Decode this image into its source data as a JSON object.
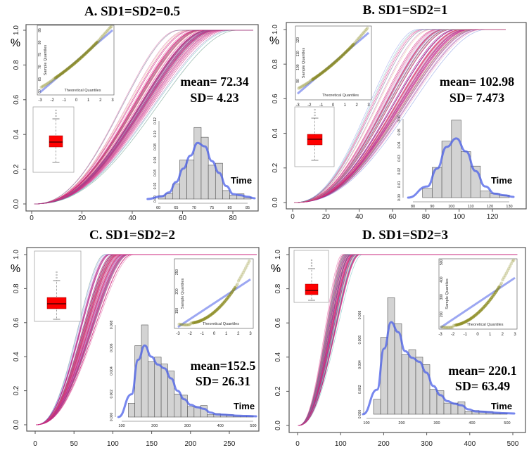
{
  "chart_data": [
    {
      "type": "line",
      "title": "A. SD1=SD2=0.5",
      "ylabel": "%",
      "xlim": [
        0,
        88
      ],
      "ylim": [
        0,
        1
      ],
      "xticks": [
        0,
        20,
        40,
        60,
        80
      ],
      "yticks": [
        "0.0",
        "0.2",
        "0.4",
        "0.6",
        "0.8",
        "1.0"
      ],
      "stats": {
        "mean": "mean= 72.34",
        "sd": "SD= 4.23"
      },
      "histogram": {
        "xlabel": "Time",
        "bin_start": 60,
        "bin_width": 2,
        "values": [
          0.005,
          0.008,
          0.023,
          0.06,
          0.06,
          0.11,
          0.095,
          0.052,
          0.055,
          0.013,
          0.006,
          0.008,
          0.003
        ],
        "xticks": [
          60,
          65,
          70,
          75,
          80,
          85
        ],
        "yticks": [
          "0.00",
          "0.02",
          "0.04",
          "0.06",
          "0.08",
          "0.10",
          "0.12"
        ]
      },
      "qqplot": {
        "xlabel": "Theoretical Quantiles",
        "ylabel": "Sample Quantiles",
        "xticks": [
          -3,
          -2,
          -1,
          0,
          1,
          2,
          3
        ],
        "yticks": [
          60,
          65,
          70,
          75,
          80,
          85
        ]
      }
    },
    {
      "type": "line",
      "title": "B. SD1=SD2=1",
      "ylabel": "%",
      "xlim": [
        0,
        130
      ],
      "ylim": [
        0,
        1
      ],
      "xticks": [
        0,
        20,
        40,
        60,
        80,
        100,
        120
      ],
      "yticks": [
        "0.0",
        "0.2",
        "0.4",
        "0.6",
        "0.8",
        "1.0"
      ],
      "stats": {
        "mean": "mean= 102.98",
        "sd": "SD= 7.473"
      },
      "histogram": {
        "xlabel": "Time",
        "bin_start": 85,
        "bin_width": 5,
        "values": [
          0.007,
          0.023,
          0.043,
          0.059,
          0.035,
          0.024,
          0.005,
          0.003,
          0.002
        ],
        "xticks": [
          80,
          90,
          100,
          110,
          120,
          130
        ],
        "yticks": [
          "0.00",
          "0.01",
          "0.02",
          "0.03",
          "0.04",
          "0.05",
          "0.06"
        ]
      },
      "qqplot": {
        "xlabel": "Theoretical Quantiles",
        "ylabel": "Sample Quantiles",
        "xticks": [
          -3,
          -2,
          -1,
          0,
          1,
          2,
          3
        ],
        "yticks": [
          90,
          100,
          110,
          120
        ]
      }
    },
    {
      "type": "line",
      "title": "C. SD1=SD2=2",
      "ylabel": "%",
      "xlim": [
        0,
        285
      ],
      "ylim": [
        0,
        1
      ],
      "xticks": [
        0,
        50,
        100,
        150,
        200,
        250
      ],
      "yticks": [
        "0.0",
        "0.2",
        "0.4",
        "0.6",
        "0.8",
        "1.0"
      ],
      "stats": {
        "mean": "mean=152.5",
        "sd": "SD= 26.31"
      },
      "histogram": {
        "xlabel": "Time",
        "bin_start": 120,
        "bin_width": 20,
        "values": [
          0.0012,
          0.0062,
          0.008,
          0.0048,
          0.0052,
          0.0046,
          0.004,
          0.002,
          0.0019,
          0.0009,
          0.0009,
          0.001,
          0.0002,
          0.0003,
          0.0002,
          0.0002,
          0.0001,
          0.0001,
          0.0001
        ],
        "xticks": [
          100,
          200,
          300,
          400,
          500
        ],
        "yticks": [
          "0.000",
          "0.002",
          "0.004",
          "0.006",
          "0.008"
        ]
      },
      "qqplot": {
        "xlabel": "Theoretical Quantiles",
        "ylabel": "Sample Quantiles",
        "xticks": [
          -3,
          -2,
          -1,
          0,
          1,
          2,
          3
        ],
        "yticks": [
          150,
          200,
          250
        ]
      }
    },
    {
      "type": "line",
      "title": "D. SD1=SD2=3",
      "ylabel": "%",
      "xlim": [
        0,
        510
      ],
      "ylim": [
        0,
        1
      ],
      "xticks": [
        0,
        100,
        200,
        300,
        400,
        500
      ],
      "yticks": [
        "0.0",
        "0.2",
        "0.4",
        "0.6",
        "0.8",
        "1.0"
      ],
      "stats": {
        "mean": "mean= 220.1",
        "sd": "SD= 63.49"
      },
      "histogram": {
        "xlabel": "Time",
        "bin_start": 120,
        "bin_width": 20,
        "values": [
          0.0012,
          0.0062,
          0.0094,
          0.0073,
          0.0048,
          0.0052,
          0.0046,
          0.004,
          0.002,
          0.0019,
          0.0009,
          0.0009,
          0.001,
          0.0002,
          0.0003,
          0.0002,
          0.0002,
          0.0001,
          0.0001
        ],
        "xticks": [
          100,
          200,
          300,
          400,
          500
        ],
        "yticks": [
          "0.000",
          "0.002",
          "0.004",
          "0.006",
          "0.008"
        ]
      },
      "qqplot": {
        "xlabel": "Theoretical Quantiles",
        "ylabel": "Sample Quantiles",
        "xticks": [
          -3,
          -2,
          -1,
          0,
          1,
          2,
          3
        ],
        "yticks": [
          200,
          300,
          400,
          500
        ]
      }
    }
  ],
  "colors": {
    "density": "#4a5fe8",
    "boxplot": "#ff0000",
    "histogram": "#d3d3d3",
    "qq_points": "#8a8a20",
    "curve_main": "#d0207a"
  }
}
